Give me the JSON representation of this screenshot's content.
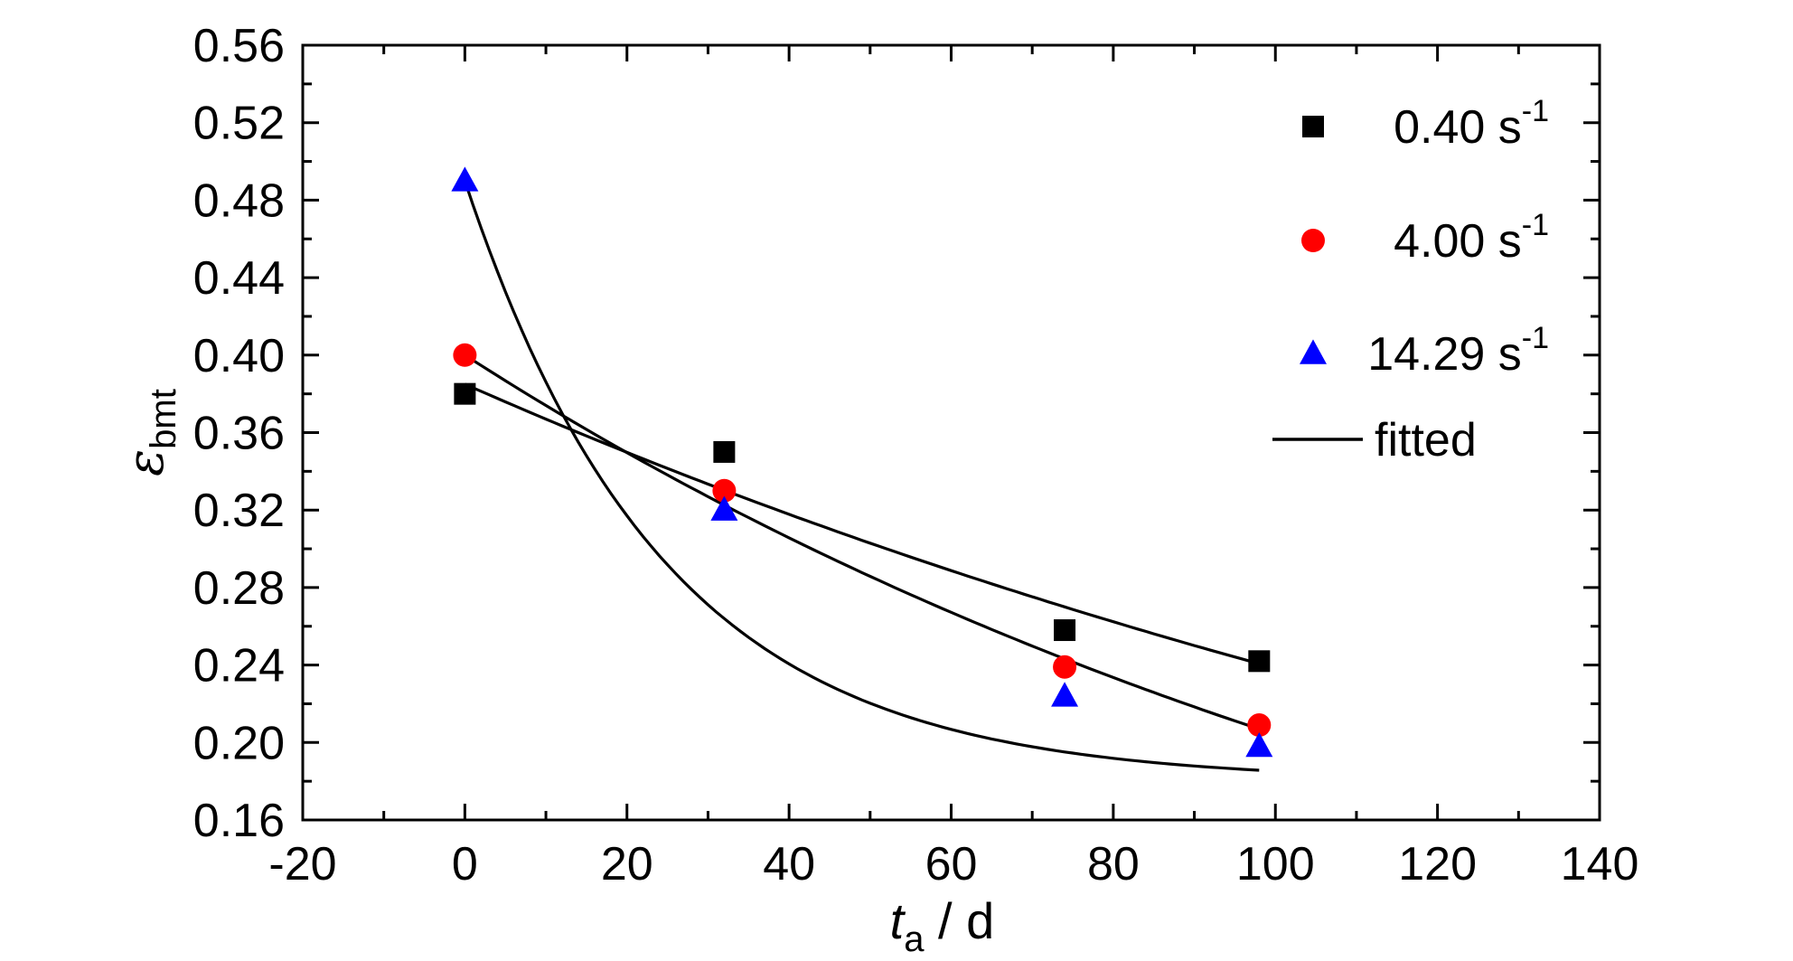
{
  "chart_data": {
    "type": "scatter",
    "xlabel": {
      "main": "t",
      "sub": "a",
      "rest": " / d"
    },
    "ylabel": {
      "main": "ε",
      "sub": "bmt"
    },
    "xlim": [
      -20,
      140
    ],
    "ylim": [
      0.16,
      0.56
    ],
    "xticks": [
      -20,
      0,
      20,
      40,
      60,
      80,
      100,
      120,
      140
    ],
    "yticks": [
      "0.16",
      "0.20",
      "0.24",
      "0.28",
      "0.32",
      "0.36",
      "0.40",
      "0.44",
      "0.48",
      "0.52",
      "0.56"
    ],
    "grid": false,
    "legend_position": "top-right",
    "series": [
      {
        "name": "0.40 s",
        "sup": "-1",
        "marker": "square",
        "color": "#000000",
        "x": [
          0,
          32,
          74,
          98
        ],
        "y": [
          0.38,
          0.35,
          0.258,
          0.242
        ],
        "fit": {
          "a": 0.385,
          "b": -0.004795
        }
      },
      {
        "name": "4.00 s",
        "sup": "-1",
        "marker": "circle",
        "color": "#ff0000",
        "x": [
          0,
          32,
          74,
          98
        ],
        "y": [
          0.4,
          0.33,
          0.239,
          0.209
        ],
        "fit": {
          "a": 0.4,
          "b": -0.006725
        }
      },
      {
        "name": "14.29 s",
        "sup": "-1",
        "marker": "triangle",
        "color": "#0000ff",
        "x": [
          0,
          32,
          74,
          98
        ],
        "y": [
          0.49,
          0.32,
          0.224,
          0.198
        ],
        "fit": {
          "y0": 0.18,
          "a": 0.31,
          "t": 24.5
        }
      }
    ],
    "fit_legend": "fitted",
    "fit_color": "#000000"
  }
}
